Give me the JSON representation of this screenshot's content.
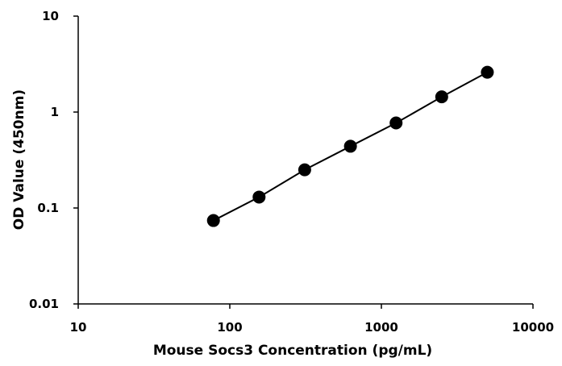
{
  "chart_data": {
    "type": "line",
    "xlabel": "Mouse Socs3 Concentration (pg/mL)",
    "ylabel": "OD Value (450nm)",
    "xscale": "log",
    "yscale": "log",
    "xlim": [
      10,
      10000
    ],
    "ylim": [
      0.01,
      10
    ],
    "x_ticks": [
      "10",
      "100",
      "1000",
      "10000"
    ],
    "y_ticks": [
      "0.01",
      "0.1",
      "1",
      "10"
    ],
    "grid": false,
    "legend": "none",
    "series": [
      {
        "marker": "circle",
        "color": "#000000",
        "x": [
          78,
          156,
          312,
          625,
          1250,
          2500,
          5000
        ],
        "y": [
          0.074,
          0.13,
          0.25,
          0.44,
          0.77,
          1.44,
          2.6
        ]
      }
    ]
  }
}
